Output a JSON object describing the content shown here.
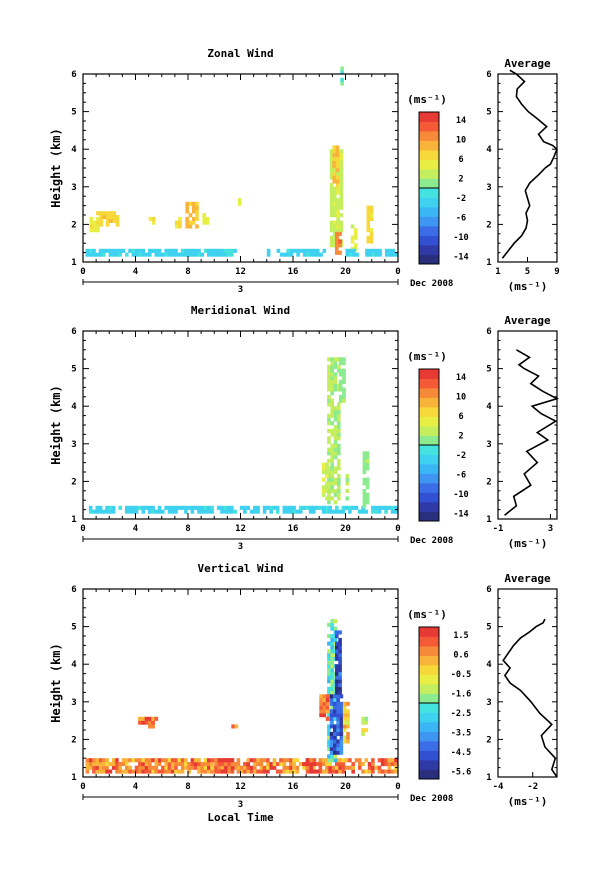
{
  "figure": {
    "date_label": "Dec 2008",
    "day_label": "3",
    "xlabel": "Local Time",
    "ylabel": "Height (km)",
    "unit_label": "(ms⁻¹)",
    "avg_title": "Average",
    "x_ticks": [
      "0",
      "4",
      "8",
      "12",
      "16",
      "20",
      "0"
    ]
  },
  "chart_data": [
    {
      "type": "heatmap",
      "title": "Zonal Wind",
      "xlabel": "",
      "ylabel": "Height (km)",
      "xlim": [
        0,
        24
      ],
      "ylim": [
        1,
        6
      ],
      "y_ticks": [
        "1",
        "2",
        "3",
        "4",
        "5",
        "6"
      ],
      "colorbar": {
        "label": "(ms⁻¹)",
        "ticks": [
          "14",
          "10",
          "6",
          "2",
          "-2",
          "-6",
          "-10",
          "-14"
        ],
        "range": [
          -16,
          16
        ]
      },
      "blobs": [
        {
          "t0": 1.0,
          "t1": 2.6,
          "h0": 1.95,
          "h1": 2.35,
          "v": 7
        },
        {
          "t0": 0.5,
          "t1": 1.2,
          "h0": 1.8,
          "h1": 2.2,
          "v": 5
        },
        {
          "t0": 5.0,
          "t1": 5.3,
          "h0": 2.0,
          "h1": 2.2,
          "v": 5
        },
        {
          "t0": 7.8,
          "t1": 8.7,
          "h0": 1.9,
          "h1": 2.6,
          "v": 8
        },
        {
          "t0": 7.0,
          "t1": 7.5,
          "h0": 1.9,
          "h1": 2.2,
          "v": 6
        },
        {
          "t0": 9.1,
          "t1": 9.4,
          "h0": 2.0,
          "h1": 2.3,
          "v": 5
        },
        {
          "t0": 11.8,
          "t1": 12.0,
          "h0": 2.5,
          "h1": 2.7,
          "v": 5
        },
        {
          "t0": 18.8,
          "t1": 19.6,
          "h0": 1.4,
          "h1": 4.0,
          "v": 3
        },
        {
          "t0": 19.0,
          "t1": 19.4,
          "h0": 3.0,
          "h1": 4.1,
          "v": 8
        },
        {
          "t0": 19.2,
          "t1": 19.5,
          "h0": 1.2,
          "h1": 1.8,
          "v": 11
        },
        {
          "t0": 19.6,
          "t1": 19.8,
          "h0": 5.5,
          "h1": 6.1,
          "v": -1
        },
        {
          "t0": 20.4,
          "t1": 20.7,
          "h0": 1.3,
          "h1": 2.0,
          "v": 4
        },
        {
          "t0": 21.6,
          "t1": 21.9,
          "h0": 1.5,
          "h1": 2.5,
          "v": 6
        },
        {
          "t0": 0.2,
          "t1": 11.5,
          "h0": 1.15,
          "h1": 1.3,
          "v": -3
        },
        {
          "t0": 14.0,
          "t1": 18.5,
          "h0": 1.15,
          "h1": 1.3,
          "v": -3
        },
        {
          "t0": 20.0,
          "t1": 23.8,
          "h0": 1.15,
          "h1": 1.3,
          "v": -3
        }
      ],
      "average_profile": {
        "xlim": [
          1,
          9
        ],
        "x_ticks": [
          "1",
          "5",
          "9"
        ],
        "xlabel": "(ms⁻¹)",
        "x": [
          1.6,
          2.4,
          3.2,
          4.2,
          4.8,
          5.0,
          4.8,
          5.3,
          5.0,
          4.7,
          5.3,
          6.4,
          7.4,
          8.1,
          8.6,
          9.0,
          8.4,
          7.2,
          6.5,
          7.6,
          6.4,
          5.1,
          4.2,
          3.5,
          3.6,
          4.6,
          3.5,
          2.6
        ],
        "y": [
          1.1,
          1.3,
          1.5,
          1.7,
          1.9,
          2.1,
          2.3,
          2.5,
          2.7,
          2.9,
          3.1,
          3.3,
          3.5,
          3.6,
          3.8,
          4.0,
          4.1,
          4.2,
          4.4,
          4.6,
          4.8,
          5.0,
          5.2,
          5.4,
          5.6,
          5.8,
          6.0,
          6.1
        ]
      }
    },
    {
      "type": "heatmap",
      "title": "Meridional Wind",
      "xlabel": "",
      "ylabel": "Height (km)",
      "xlim": [
        0,
        24
      ],
      "ylim": [
        1,
        6
      ],
      "y_ticks": [
        "1",
        "2",
        "3",
        "4",
        "5",
        "6"
      ],
      "colorbar": {
        "label": "(ms⁻¹)",
        "ticks": [
          "14",
          "10",
          "6",
          "2",
          "-2",
          "-6",
          "-10",
          "-14"
        ],
        "range": [
          -16,
          16
        ]
      },
      "blobs": [
        {
          "t0": 0.2,
          "t1": 23.8,
          "h0": 1.15,
          "h1": 1.3,
          "v": -3
        },
        {
          "t0": 18.6,
          "t1": 19.6,
          "h0": 1.4,
          "h1": 5.2,
          "v": 2
        },
        {
          "t0": 19.5,
          "t1": 19.9,
          "h0": 4.1,
          "h1": 5.2,
          "v": 1
        },
        {
          "t0": 18.2,
          "t1": 18.5,
          "h0": 1.5,
          "h1": 2.5,
          "v": 3
        },
        {
          "t0": 21.3,
          "t1": 21.6,
          "h0": 1.3,
          "h1": 2.8,
          "v": 1
        },
        {
          "t0": 20.0,
          "t1": 20.2,
          "h0": 1.5,
          "h1": 2.2,
          "v": 2
        }
      ],
      "average_profile": {
        "xlim": [
          -1,
          3.5
        ],
        "x_ticks": [
          "-1",
          "3"
        ],
        "xlabel": "(ms⁻¹)",
        "x": [
          -0.5,
          0.4,
          0.2,
          1.5,
          1.0,
          2.0,
          1.2,
          2.8,
          2.0,
          3.4,
          2.3,
          1.6,
          3.5,
          2.4,
          1.5,
          2.1,
          1.0,
          0.6,
          1.4,
          0.4
        ],
        "y": [
          1.1,
          1.35,
          1.6,
          1.9,
          2.2,
          2.5,
          2.8,
          3.1,
          3.3,
          3.6,
          3.8,
          4.0,
          4.2,
          4.4,
          4.6,
          4.8,
          5.0,
          5.1,
          5.3,
          5.5
        ]
      }
    },
    {
      "type": "heatmap",
      "title": "Vertical Wind",
      "xlabel": "Local Time",
      "ylabel": "Height (km)",
      "xlim": [
        0,
        24
      ],
      "ylim": [
        1,
        6
      ],
      "y_ticks": [
        "1",
        "2",
        "3",
        "4",
        "5",
        "6"
      ],
      "colorbar": {
        "label": "(ms⁻¹)",
        "ticks": [
          "1.5",
          "0.6",
          "-0.5",
          "-1.6",
          "-2.5",
          "-3.5",
          "-4.5",
          "-5.6"
        ],
        "range": [
          -6.1,
          2.0
        ]
      },
      "blobs": [
        {
          "t0": 0.2,
          "t1": 23.8,
          "h0": 1.1,
          "h1": 1.5,
          "v": 0.5
        },
        {
          "t0": 4.2,
          "t1": 5.6,
          "h0": 2.3,
          "h1": 2.6,
          "v": 0.6
        },
        {
          "t0": 11.3,
          "t1": 11.6,
          "h0": 2.3,
          "h1": 2.5,
          "v": 0.9
        },
        {
          "t0": 10.0,
          "t1": 11.3,
          "h0": 1.1,
          "h1": 1.5,
          "v": 1.2
        },
        {
          "t0": 17.0,
          "t1": 18.0,
          "h0": 1.1,
          "h1": 1.5,
          "v": 1.2
        },
        {
          "t0": 18.6,
          "t1": 19.2,
          "h0": 1.4,
          "h1": 5.1,
          "v": -2.5
        },
        {
          "t0": 18.8,
          "t1": 19.6,
          "h0": 1.6,
          "h1": 3.2,
          "v": -5.0
        },
        {
          "t0": 19.2,
          "t1": 19.5,
          "h0": 3.2,
          "h1": 4.8,
          "v": -5.2
        },
        {
          "t0": 18.0,
          "t1": 18.6,
          "h0": 2.5,
          "h1": 3.2,
          "v": 0.8
        },
        {
          "t0": 19.8,
          "t1": 20.3,
          "h0": 1.9,
          "h1": 3.0,
          "v": -0.6
        },
        {
          "t0": 21.2,
          "t1": 21.6,
          "h0": 2.1,
          "h1": 2.6,
          "v": -1.2
        }
      ],
      "average_profile": {
        "xlim": [
          -4,
          -0.6
        ],
        "x_ticks": [
          "-4",
          "-2"
        ],
        "xlabel": "(ms⁻¹)",
        "x": [
          -0.6,
          -0.9,
          -0.7,
          -1.3,
          -1.5,
          -0.9,
          -1.6,
          -2.1,
          -2.7,
          -3.3,
          -3.6,
          -3.3,
          -3.7,
          -3.4,
          -3.1,
          -2.7,
          -2.2,
          -1.8,
          -1.4,
          -1.3
        ],
        "y": [
          1.0,
          1.2,
          1.5,
          1.8,
          2.1,
          2.4,
          2.7,
          3.0,
          3.3,
          3.5,
          3.7,
          3.9,
          4.1,
          4.3,
          4.5,
          4.7,
          4.85,
          5.0,
          5.1,
          5.2
        ]
      }
    }
  ]
}
